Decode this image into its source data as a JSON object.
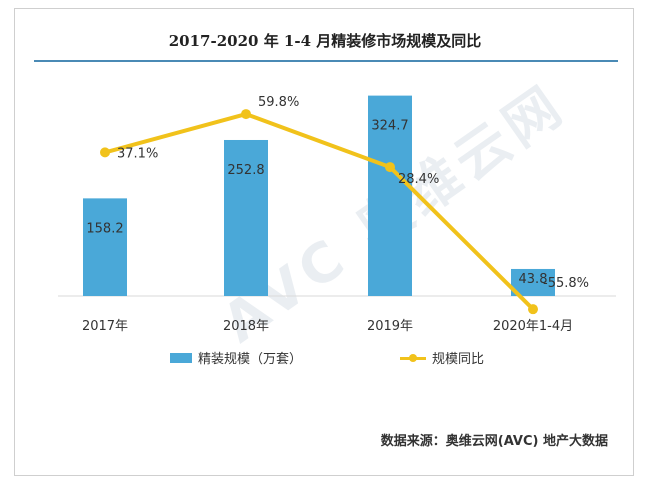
{
  "chart_data": {
    "type": "bar+line",
    "title": "2017-2020 年 1-4 月精装修市场规模及同比",
    "categories": [
      "2017年",
      "2018年",
      "2019年",
      "2020年1-4月"
    ],
    "series": [
      {
        "name": "精装规模（万套）",
        "type": "bar",
        "values": [
          158.2,
          252.8,
          324.7,
          43.8
        ],
        "labels": [
          "158.2",
          "252.8",
          "324.7",
          "43.8"
        ]
      },
      {
        "name": "规模同比",
        "type": "line",
        "values": [
          37.1,
          59.8,
          28.4,
          -55.8
        ],
        "labels": [
          "37.1%",
          "59.8%",
          "28.4%",
          "-55.8%"
        ]
      }
    ],
    "ylim_bar": [
      0,
      350
    ],
    "ylim_line": [
      -80,
      80
    ],
    "legend": "bottom-center",
    "colors": {
      "bar": "#4aa8d8",
      "line": "#f1c21b"
    }
  },
  "source": "数据来源：奥维云网(AVC) 地产大数据",
  "watermark": "AVC 奥维云网"
}
